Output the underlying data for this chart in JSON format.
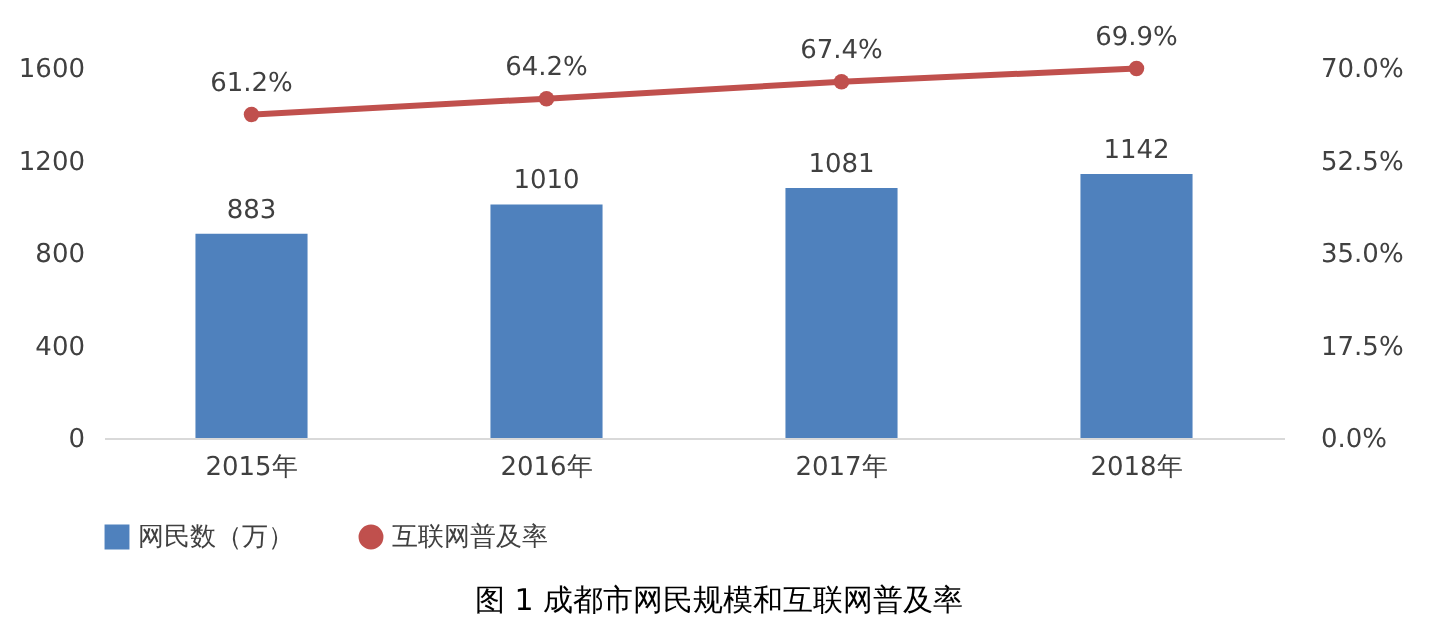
{
  "chart_data": {
    "type": "bar",
    "title": "图 1 成都市网民规模和互联网普及率",
    "categories": [
      "2015年",
      "2016年",
      "2017年",
      "2018年"
    ],
    "series": [
      {
        "name": "网民数（万）",
        "color": "#4f81bd",
        "values": [
          883,
          1010,
          1081,
          1142
        ]
      },
      {
        "name": "互联网普及率",
        "type": "line",
        "axis": "y2",
        "color": "#c0504d",
        "marker": "circle",
        "values": [
          61.2,
          64.2,
          67.4,
          69.9
        ],
        "value_labels": [
          "61.2%",
          "64.2%",
          "67.4%",
          "69.9%"
        ]
      }
    ],
    "data_labels": true,
    "legend": "bottom",
    "ylim": [
      0,
      1600
    ],
    "yticks": [
      0,
      400,
      800,
      1200,
      1600
    ],
    "y2lim": [
      0,
      70
    ],
    "y2ticks": [
      {
        "value": 0,
        "label": "0.0%"
      },
      {
        "value": 17.5,
        "label": "17.5%"
      },
      {
        "value": 35,
        "label": "35.0%"
      },
      {
        "value": 52.5,
        "label": "52.5%"
      },
      {
        "value": 70,
        "label": "70.0%"
      }
    ]
  }
}
